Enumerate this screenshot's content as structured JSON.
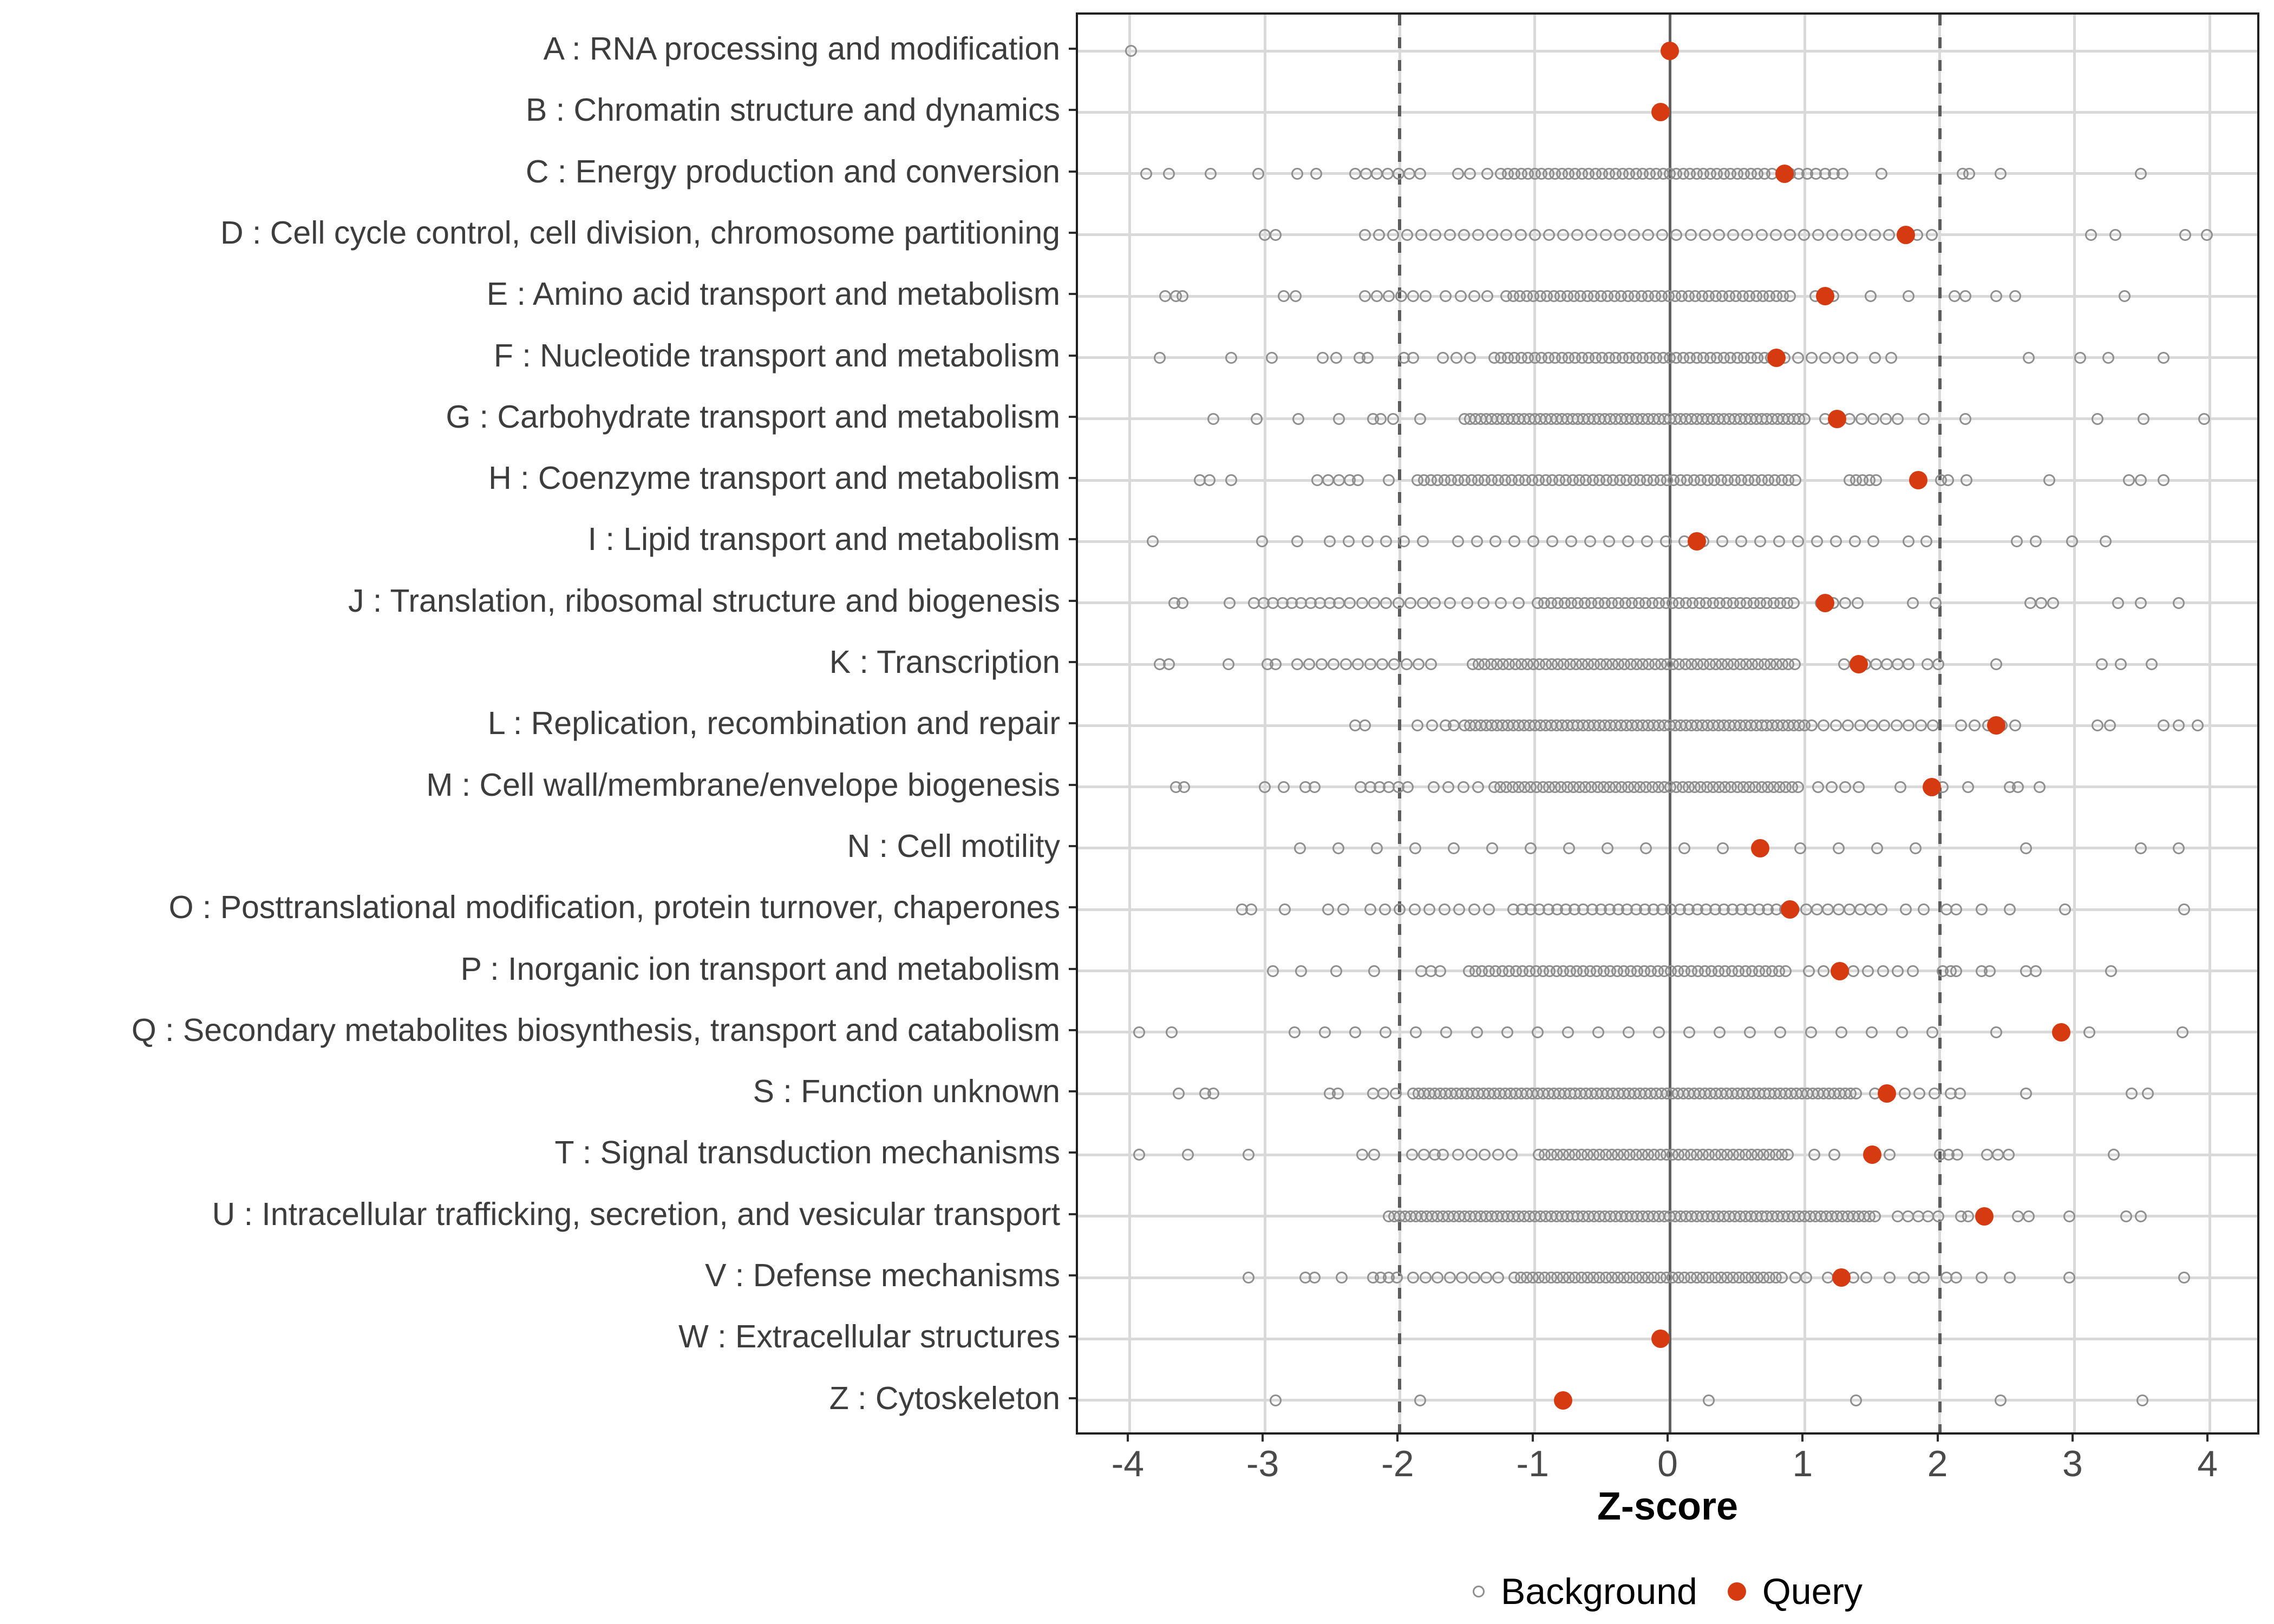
{
  "chart_data": {
    "type": "scatter",
    "subtype": "strip-plot",
    "title": "",
    "xlabel": "Z-score",
    "ylabel": "",
    "xlim": [
      -4.4,
      4.4
    ],
    "x_ticks": [
      -4,
      -3,
      -2,
      -1,
      0,
      1,
      2,
      3,
      4
    ],
    "grid": true,
    "reference_lines": {
      "solid": [
        0
      ],
      "dashed": [
        -2,
        2
      ]
    },
    "legend_position": "bottom",
    "legend": [
      {
        "label": "Background",
        "marker": "open-circle",
        "color": "#8f8f8f"
      },
      {
        "label": "Query",
        "marker": "filled-circle",
        "color": "#d63a10"
      }
    ],
    "colors": {
      "query": "#d63a10",
      "background_stroke": "#8f8f8f",
      "grid": "#d9d9d9",
      "reference_line": "#5c5c5c",
      "panel_border": "#1f1f1f",
      "category_text": "#3d3d3d",
      "tick_text": "#4a4a4a"
    },
    "categories": [
      {
        "code": "A",
        "label": "A : RNA processing and modification",
        "query": 0.0,
        "background_runs": [],
        "background_extras": [
          -3.99
        ]
      },
      {
        "code": "B",
        "label": "B : Chromatin structure and dynamics",
        "query": -0.07,
        "background_runs": [],
        "background_extras": []
      },
      {
        "code": "C",
        "label": "C : Energy production and conversion",
        "query": 0.85,
        "background_runs": [
          [
            -2.33,
            -1.83,
            0.08
          ],
          [
            -1.25,
            0.7,
            0.05
          ],
          [
            0.76,
            1.28,
            0.065
          ]
        ],
        "background_extras": [
          -3.88,
          -3.71,
          -3.4,
          -3.05,
          -2.76,
          -2.62,
          -1.57,
          -1.48,
          -1.35,
          1.57,
          2.17,
          2.22,
          2.45,
          3.49
        ]
      },
      {
        "code": "D",
        "label": "D : Cell cycle control, cell division, chromosome partitioning",
        "query": 1.75,
        "background_runs": [
          [
            -2.26,
            1.95,
            0.105
          ]
        ],
        "background_extras": [
          -3.0,
          -2.92,
          3.12,
          3.3,
          3.82,
          3.98
        ]
      },
      {
        "code": "E",
        "label": "E : Amino acid transport and metabolism",
        "query": 1.15,
        "background_runs": [
          [
            -2.26,
            -1.74,
            0.09
          ],
          [
            -1.21,
            0.93,
            0.05
          ]
        ],
        "background_extras": [
          -3.74,
          -3.66,
          -3.61,
          -2.86,
          -2.77,
          -1.66,
          -1.55,
          -1.45,
          -1.35,
          1.08,
          1.15,
          1.21,
          1.49,
          1.77,
          2.11,
          2.19,
          2.42,
          2.56,
          3.37
        ]
      },
      {
        "code": "F",
        "label": "F : Nucleotide transport and metabolism",
        "query": 0.79,
        "background_runs": [
          [
            -1.3,
            0.88,
            0.05
          ],
          [
            0.95,
            1.35,
            0.1
          ]
        ],
        "background_extras": [
          -3.78,
          -3.25,
          -2.95,
          -2.57,
          -2.47,
          -2.3,
          -2.24,
          -1.97,
          -1.9,
          -1.68,
          -1.58,
          -1.48,
          1.52,
          1.64,
          2.66,
          3.04,
          3.25,
          3.66
        ]
      },
      {
        "code": "G",
        "label": "G : Carbohydrate transport and metabolism",
        "query": 1.24,
        "background_runs": [
          [
            -1.52,
            1.0,
            0.04
          ],
          [
            1.15,
            1.7,
            0.09
          ]
        ],
        "background_extras": [
          -3.38,
          -3.06,
          -2.75,
          -2.45,
          -2.2,
          -2.14,
          -2.05,
          -1.85,
          1.88,
          2.19,
          3.17,
          3.51,
          3.96
        ]
      },
      {
        "code": "H",
        "label": "H : Coenzyme transport and metabolism",
        "query": 1.84,
        "background_runs": [
          [
            -1.87,
            0.93,
            0.05
          ],
          [
            1.33,
            1.53,
            0.05
          ]
        ],
        "background_extras": [
          -3.48,
          -3.41,
          -3.25,
          -2.61,
          -2.53,
          -2.45,
          -2.37,
          -2.31,
          -2.08,
          2.01,
          2.06,
          2.2,
          2.81,
          3.4,
          3.49,
          3.66
        ]
      },
      {
        "code": "I",
        "label": "I : Lipid transport and metabolism",
        "query": 0.2,
        "background_runs": [
          [
            -1.57,
            1.51,
            0.14
          ]
        ],
        "background_extras": [
          -3.83,
          -3.02,
          -2.76,
          -2.52,
          -2.38,
          -2.24,
          -2.1,
          -1.97,
          -1.83,
          1.77,
          1.9,
          2.57,
          2.71,
          2.98,
          3.23
        ]
      },
      {
        "code": "J",
        "label": "J : Translation, ribosomal structure and biogenesis",
        "query": 1.15,
        "background_runs": [
          [
            -3.08,
            -2.45,
            0.07
          ],
          [
            -2.37,
            -1.74,
            0.09
          ],
          [
            -0.98,
            0.96,
            0.05
          ],
          [
            1.12,
            1.4,
            0.09
          ]
        ],
        "background_extras": [
          -3.67,
          -3.61,
          -3.26,
          -1.63,
          -1.5,
          -1.38,
          -1.25,
          -1.12,
          1.8,
          1.97,
          2.67,
          2.75,
          2.84,
          3.32,
          3.49,
          3.77
        ]
      },
      {
        "code": "K",
        "label": "K : Transcription",
        "query": 1.4,
        "background_runs": [
          [
            -2.76,
            -1.71,
            0.09
          ],
          [
            -1.46,
            0.96,
            0.045
          ],
          [
            1.29,
            1.77,
            0.08
          ]
        ],
        "background_extras": [
          -3.78,
          -3.71,
          -3.27,
          -2.98,
          -2.92,
          1.91,
          1.99,
          2.42,
          3.2,
          3.34,
          3.57
        ]
      },
      {
        "code": "L",
        "label": "L : Replication, recombination and repair",
        "query": 2.42,
        "background_runs": [
          [
            -1.52,
            1.0,
            0.04
          ],
          [
            1.05,
            2.0,
            0.09
          ],
          [
            2.16,
            2.56,
            0.1
          ]
        ],
        "background_extras": [
          -2.33,
          -2.26,
          -1.87,
          -1.76,
          -1.66,
          -1.6,
          3.17,
          3.26,
          3.66,
          3.77,
          3.91
        ]
      },
      {
        "code": "M",
        "label": "M : Cell wall/membrane/envelope biogenesis",
        "query": 1.94,
        "background_runs": [
          [
            -2.29,
            -1.93,
            0.07
          ],
          [
            -1.75,
            -1.4,
            0.11
          ],
          [
            -1.3,
            0.97,
            0.045
          ],
          [
            1.1,
            1.4,
            0.1
          ]
        ],
        "background_extras": [
          -3.66,
          -3.6,
          -3.0,
          -2.86,
          -2.7,
          -2.63,
          1.71,
          2.02,
          2.21,
          2.52,
          2.58,
          2.74
        ]
      },
      {
        "code": "N",
        "label": "N : Cell motility",
        "query": 0.67,
        "background_runs": [
          [
            -2.74,
            2.08,
            0.285
          ]
        ],
        "background_extras": [
          2.64,
          3.49,
          3.77
        ]
      },
      {
        "code": "O",
        "label": "O : Posttranslational modification, protein turnover, chaperones",
        "query": 0.89,
        "background_runs": [
          [
            -2.22,
            -1.3,
            0.11
          ],
          [
            -1.16,
            0.95,
            0.065
          ],
          [
            1.01,
            1.57,
            0.08
          ]
        ],
        "background_extras": [
          -3.17,
          -3.1,
          -2.85,
          -2.53,
          -2.42,
          1.75,
          1.88,
          2.05,
          2.12,
          2.31,
          2.52,
          2.93,
          3.81
        ]
      },
      {
        "code": "P",
        "label": "P : Inorganic ion transport and metabolism",
        "query": 1.26,
        "background_runs": [
          [
            -1.49,
            0.9,
            0.05
          ],
          [
            1.03,
            1.8,
            0.11
          ]
        ],
        "background_extras": [
          -2.94,
          -2.73,
          -2.47,
          -2.19,
          -1.84,
          -1.77,
          -1.7,
          2.02,
          2.08,
          2.12,
          2.31,
          2.37,
          2.64,
          2.71,
          3.27
        ]
      },
      {
        "code": "Q",
        "label": "Q : Secondary metabolites biosynthesis, transport and catabolism",
        "query": 2.9,
        "background_runs": [
          [
            -2.78,
            1.99,
            0.225
          ]
        ],
        "background_extras": [
          -3.93,
          -3.69,
          2.42,
          3.11,
          3.8
        ]
      },
      {
        "code": "S",
        "label": "S : Function unknown",
        "query": 1.61,
        "background_runs": [
          [
            -1.9,
            1.38,
            0.04
          ],
          [
            1.52,
            1.96,
            0.11
          ]
        ],
        "background_extras": [
          -3.64,
          -3.44,
          -3.38,
          -2.52,
          -2.46,
          -2.2,
          -2.12,
          -2.03,
          2.08,
          2.15,
          2.64,
          3.42,
          3.54
        ]
      },
      {
        "code": "T",
        "label": "T : Signal transduction mechanisms",
        "query": 1.5,
        "background_runs": [
          [
            -1.57,
            -1.1,
            0.1
          ],
          [
            -0.97,
            0.9,
            0.045
          ],
          [
            2.0,
            2.19,
            0.065
          ],
          [
            2.35,
            2.58,
            0.08
          ]
        ],
        "background_extras": [
          -3.93,
          -3.57,
          -3.12,
          -2.28,
          -2.19,
          -1.91,
          -1.82,
          -1.74,
          -1.68,
          1.07,
          1.22,
          1.63,
          3.29
        ]
      },
      {
        "code": "U",
        "label": "U : Intracellular trafficking, secretion, and vesicular transport",
        "query": 2.33,
        "background_runs": [
          [
            -2.08,
            1.55,
            0.04
          ],
          [
            1.69,
            1.99,
            0.075
          ]
        ],
        "background_extras": [
          2.16,
          2.21,
          2.58,
          2.66,
          2.96,
          3.38,
          3.49
        ]
      },
      {
        "code": "V",
        "label": "V : Defense mechanisms",
        "query": 1.27,
        "background_runs": [
          [
            -2.2,
            -2.01,
            0.06
          ],
          [
            -1.9,
            -1.26,
            0.09
          ],
          [
            -1.15,
            0.85,
            0.045
          ],
          [
            1.17,
            1.46,
            0.095
          ]
        ],
        "background_extras": [
          -3.12,
          -2.7,
          -2.63,
          -2.43,
          0.93,
          1.01,
          1.63,
          1.81,
          1.88,
          2.05,
          2.12,
          2.31,
          2.52,
          2.96,
          3.81
        ]
      },
      {
        "code": "W",
        "label": "W : Extracellular structures",
        "query": -0.07,
        "background_runs": [],
        "background_extras": []
      },
      {
        "code": "Z",
        "label": "Z : Cytoskeleton",
        "query": -0.79,
        "background_runs": [],
        "background_extras": [
          -2.92,
          -1.85,
          0.29,
          1.38,
          2.45,
          3.5
        ]
      }
    ]
  }
}
